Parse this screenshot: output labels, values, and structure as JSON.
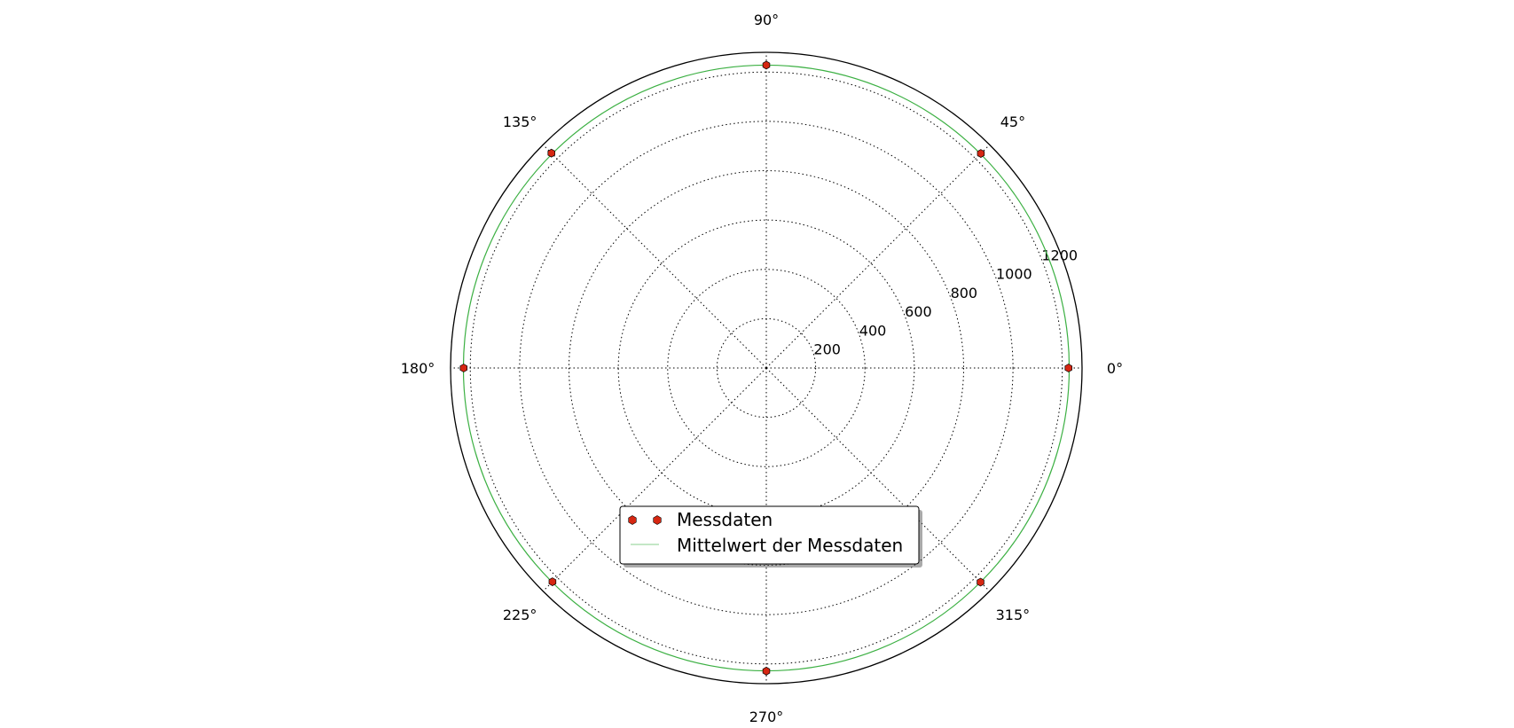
{
  "chart_data": {
    "type": "polar-scatter",
    "title": "",
    "theta_unit": "degrees",
    "r_ticks": [
      200,
      400,
      600,
      800,
      1000,
      1200
    ],
    "r_tick_labels": [
      "200",
      "400",
      "600",
      "800",
      "1000",
      "1200"
    ],
    "r_max": 1280,
    "theta_ticks": [
      0,
      45,
      90,
      135,
      180,
      225,
      270,
      315
    ],
    "theta_tick_labels": [
      "0°",
      "45°",
      "90°",
      "135°",
      "180°",
      "225°",
      "270°",
      "315°"
    ],
    "grid": true,
    "legend_position": "lower-center",
    "series": [
      {
        "name": "Messdaten",
        "kind": "markers",
        "color": "#d62712",
        "edge_color": "#000000",
        "theta": [
          0,
          45,
          90,
          135,
          180,
          225,
          270,
          315
        ],
        "r": [
          1225,
          1230,
          1228,
          1232,
          1227,
          1226,
          1229,
          1228
        ]
      },
      {
        "name": "Mittelwert der Messdaten",
        "kind": "line",
        "color": "#3cb043",
        "r": 1228
      }
    ]
  }
}
